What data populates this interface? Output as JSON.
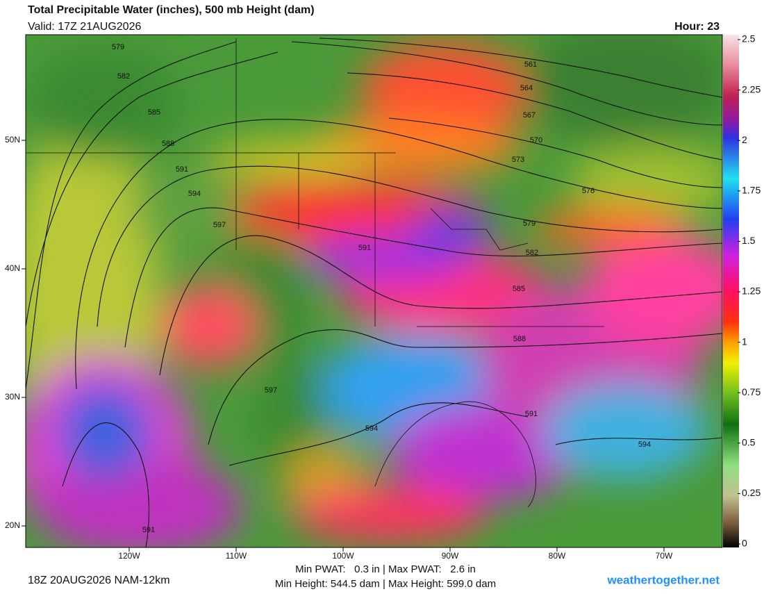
{
  "header": {
    "title": "Total Precipitable Water (inches), 500 mb Height (dam)",
    "valid": "Valid: 17Z 21AUG2026",
    "hour": "Hour: 23"
  },
  "colorbar": {
    "ticks": [
      2.5,
      2.25,
      2,
      1.75,
      1.5,
      1.25,
      1,
      0.75,
      0.5,
      0.25,
      0
    ]
  },
  "latitude_labels": [
    "50N",
    "40N",
    "30N",
    "20N"
  ],
  "longitude_labels": [
    "120W",
    "110W",
    "100W",
    "90W",
    "80W",
    "70W"
  ],
  "contour_labels": [
    579,
    582,
    585,
    588,
    591,
    594,
    597,
    591,
    561,
    564,
    567,
    570,
    573,
    576,
    579,
    582,
    585,
    588,
    597,
    594,
    591,
    594,
    591
  ],
  "footer": {
    "model": "18Z 20AUG2026 NAM-12km",
    "pwat": "Min PWAT:   0.3 in | Max PWAT:   2.6 in",
    "height": "Min Height: 544.5 dam | Max Height: 599.0 dam",
    "site": "weathertogether.net"
  }
}
